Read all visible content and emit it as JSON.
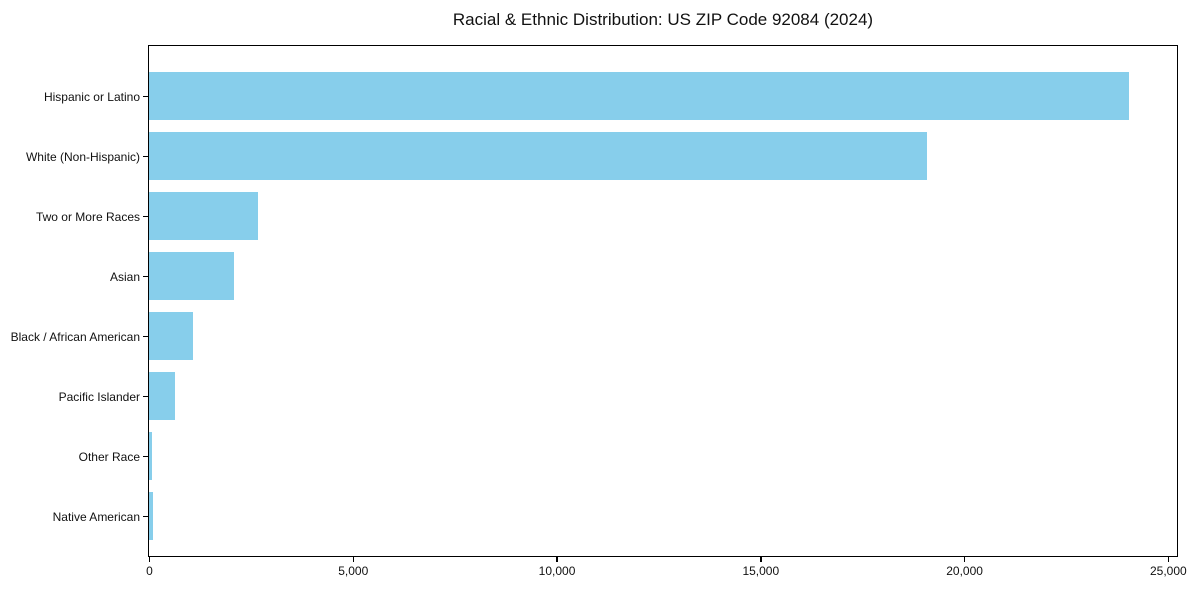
{
  "chart_data": {
    "type": "bar",
    "orientation": "horizontal",
    "title": "Racial & Ethnic Distribution: US ZIP Code 92084 (2024)",
    "categories": [
      "Hispanic or Latino",
      "White (Non-Hispanic)",
      "Two or More Races",
      "Asian",
      "Black / African American",
      "Pacific Islander",
      "Other Race",
      "Native American"
    ],
    "values": [
      24050,
      19100,
      2680,
      2080,
      1080,
      640,
      75,
      90
    ],
    "xlabel": "",
    "ylabel": "",
    "xlim": [
      0,
      25200
    ],
    "xticks": [
      0,
      5000,
      10000,
      15000,
      20000,
      25000
    ],
    "xtick_labels": [
      "0",
      "5,000",
      "10,000",
      "15,000",
      "20,000",
      "25,000"
    ],
    "bar_color": "#87CEEB",
    "axis_color": "#000000",
    "grid": false,
    "legend": false
  }
}
